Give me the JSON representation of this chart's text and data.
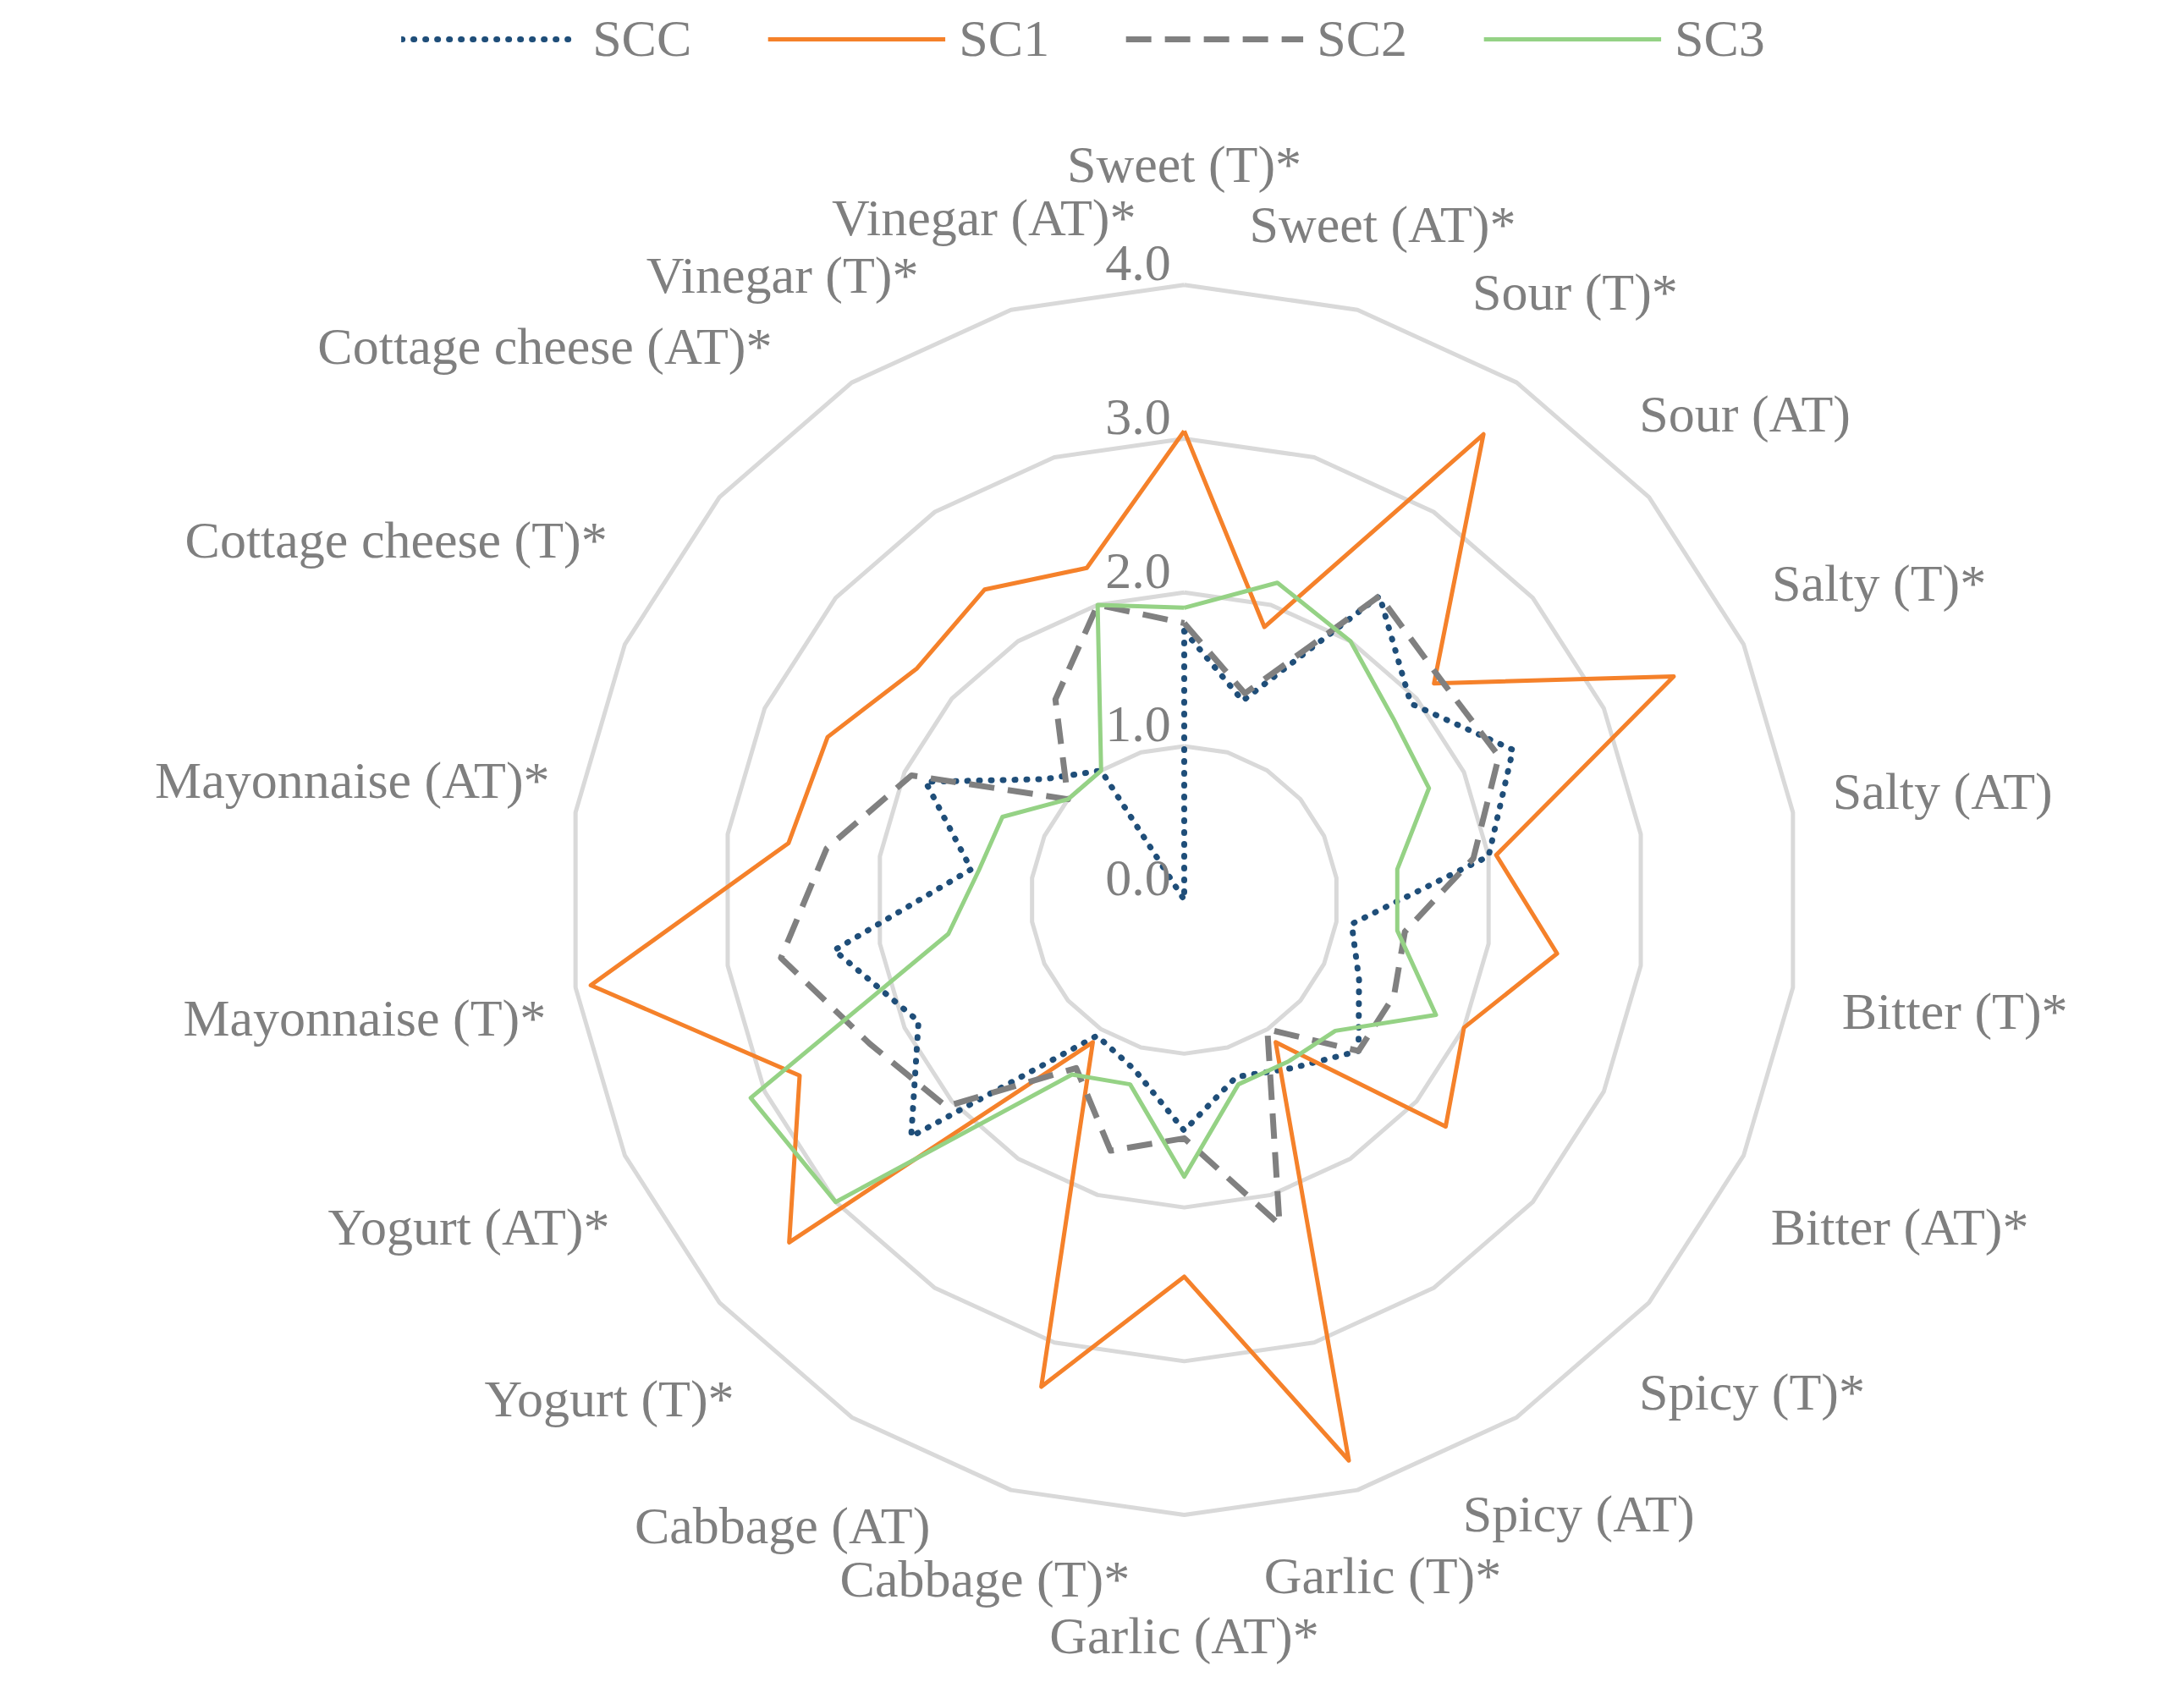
{
  "chart_data": {
    "type": "radar",
    "categories": [
      "Sweet (T)*",
      "Sweet (AT)*",
      "Sour (T)*",
      "Sour (AT)",
      "Salty (T)*",
      "Salty (AT)",
      "Bitter (T)*",
      "Bitter (AT)*",
      "Spicy (T)*",
      "Spicy (AT)",
      "Garlic (T)*",
      "Garlic (AT)*",
      "Cabbage (T)*",
      "Cabbage (AT)",
      "Yogurt (T)*",
      "Yogurt (AT)*",
      "Mayonnaise (T)*",
      "Mayonnaise (AT)*",
      "Cottage cheese (T)*",
      "Cottage cheese (AT)*",
      "Vinegar (T)*",
      "Vinegar (AT)*"
    ],
    "series": [
      {
        "name": "SCC",
        "color": "#1f4e79",
        "line_style": "dotted",
        "values": [
          1.75,
          1.35,
          2.35,
          1.95,
          2.35,
          2.0,
          1.1,
          1.25,
          1.5,
          1.3,
          1.2,
          1.5,
          1.15,
          1.05,
          2.35,
          1.9,
          2.3,
          1.4,
          1.85,
          1.2,
          1.0,
          0.0
        ]
      },
      {
        "name": "SC1",
        "color": "#f5812a",
        "line_style": "solid",
        "values": [
          3.05,
          1.85,
          3.6,
          2.15,
          3.5,
          2.05,
          2.45,
          2.0,
          2.25,
          1.1,
          3.8,
          2.45,
          3.3,
          1.1,
          3.4,
          2.75,
          3.9,
          2.6,
          2.55,
          2.3,
          2.4,
          2.25
        ]
      },
      {
        "name": "SC2",
        "color": "#808080",
        "line_style": "dashed",
        "values": [
          1.8,
          1.4,
          2.35,
          2.2,
          2.25,
          1.9,
          1.45,
          1.5,
          1.5,
          1.0,
          2.2,
          1.55,
          1.7,
          1.3,
          2.05,
          2.25,
          2.65,
          2.35,
          1.95,
          1.0,
          1.55,
          2.0
        ]
      },
      {
        "name": "SC3",
        "color": "#95d285",
        "line_style": "solid",
        "values": [
          1.9,
          2.15,
          2.0,
          1.8,
          1.75,
          1.4,
          1.4,
          1.8,
          1.3,
          1.25,
          1.25,
          1.8,
          1.25,
          1.35,
          3.0,
          3.1,
          1.55,
          1.35,
          1.3,
          1.0,
          1.0,
          2.0
        ]
      }
    ],
    "ylim": [
      0,
      4
    ],
    "yticks": [
      {
        "value": 0,
        "label": "0.0"
      },
      {
        "value": 1,
        "label": "1.0"
      },
      {
        "value": 2,
        "label": "2.0"
      },
      {
        "value": 3,
        "label": "3.0"
      },
      {
        "value": 4,
        "label": "4.0"
      }
    ],
    "grid": true,
    "legend": "top"
  }
}
